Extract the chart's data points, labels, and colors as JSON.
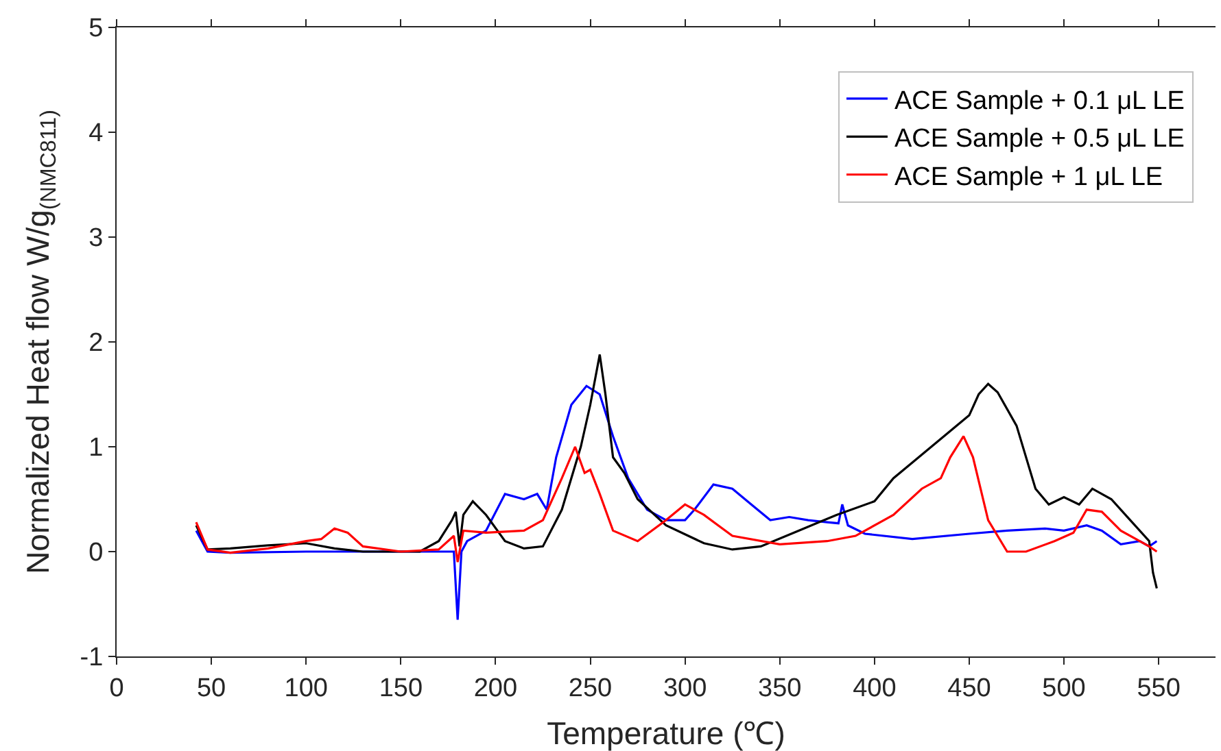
{
  "chart_data": {
    "type": "line",
    "xlabel": "Temperature (℃)",
    "ylabel": "Normalized Heat flow W/g$_{(NMC811)}$",
    "xlim": [
      0,
      580
    ],
    "xticks": [
      0,
      50,
      100,
      150,
      200,
      250,
      300,
      350,
      400,
      450,
      500,
      550
    ],
    "ylim": [
      -1,
      5
    ],
    "yticks": [
      -1,
      0,
      1,
      2,
      3,
      4,
      5
    ],
    "legend": "top right",
    "marker": "none",
    "line_style": "solid",
    "series": [
      {
        "name": "ACE Sample + 0.1 μL LE",
        "color": "#0000ff",
        "x": [
          42,
          48,
          60,
          100,
          150,
          178,
          180,
          182,
          185,
          195,
          205,
          215,
          222,
          227,
          232,
          240,
          248,
          255,
          262,
          270,
          280,
          290,
          300,
          305,
          315,
          325,
          335,
          345,
          355,
          365,
          375,
          381,
          383,
          386,
          395,
          420,
          450,
          470,
          490,
          500,
          512,
          520,
          530,
          540,
          545,
          549
        ],
        "values": [
          0.2,
          0.0,
          -0.01,
          0.0,
          0.0,
          0.0,
          -0.65,
          0.0,
          0.1,
          0.2,
          0.55,
          0.5,
          0.55,
          0.4,
          0.9,
          1.4,
          1.58,
          1.5,
          1.1,
          0.7,
          0.4,
          0.3,
          0.3,
          0.4,
          0.64,
          0.6,
          0.45,
          0.3,
          0.33,
          0.3,
          0.28,
          0.27,
          0.45,
          0.25,
          0.17,
          0.12,
          0.17,
          0.2,
          0.22,
          0.2,
          0.25,
          0.2,
          0.07,
          0.1,
          0.05,
          0.1
        ]
      },
      {
        "name": "ACE Sample + 0.5 μL LE",
        "color": "#000000",
        "x": [
          42,
          48,
          60,
          80,
          100,
          115,
          130,
          160,
          170,
          177,
          179,
          181,
          183,
          188,
          195,
          205,
          215,
          225,
          235,
          245,
          250,
          255,
          258,
          262,
          268,
          275,
          290,
          310,
          325,
          340,
          360,
          380,
          400,
          410,
          420,
          430,
          440,
          450,
          455,
          460,
          465,
          475,
          485,
          492,
          500,
          508,
          515,
          525,
          535,
          545,
          547,
          549
        ],
        "values": [
          0.25,
          0.02,
          0.03,
          0.06,
          0.08,
          0.03,
          0.0,
          0.0,
          0.1,
          0.3,
          0.38,
          0.05,
          0.35,
          0.48,
          0.35,
          0.1,
          0.03,
          0.05,
          0.4,
          1.0,
          1.4,
          1.88,
          1.5,
          0.9,
          0.75,
          0.5,
          0.25,
          0.08,
          0.02,
          0.05,
          0.2,
          0.35,
          0.48,
          0.7,
          0.85,
          1.0,
          1.15,
          1.3,
          1.5,
          1.6,
          1.52,
          1.2,
          0.6,
          0.45,
          0.52,
          0.45,
          0.6,
          0.5,
          0.3,
          0.1,
          -0.2,
          -0.35
        ]
      },
      {
        "name": "ACE Sample + 1 μL LE",
        "color": "#ff0000",
        "x": [
          42,
          48,
          60,
          80,
          100,
          108,
          115,
          122,
          130,
          150,
          170,
          178,
          180,
          183,
          195,
          215,
          225,
          235,
          242,
          247,
          250,
          255,
          262,
          275,
          290,
          300,
          310,
          325,
          350,
          375,
          390,
          410,
          425,
          435,
          440,
          447,
          452,
          460,
          470,
          480,
          495,
          505,
          512,
          520,
          530,
          545,
          549
        ],
        "values": [
          0.28,
          0.02,
          -0.01,
          0.03,
          0.1,
          0.12,
          0.22,
          0.18,
          0.05,
          0.0,
          0.02,
          0.15,
          -0.1,
          0.2,
          0.18,
          0.2,
          0.3,
          0.7,
          1.0,
          0.75,
          0.78,
          0.55,
          0.2,
          0.1,
          0.3,
          0.45,
          0.35,
          0.15,
          0.07,
          0.1,
          0.15,
          0.35,
          0.6,
          0.7,
          0.9,
          1.1,
          0.9,
          0.3,
          0.0,
          0.0,
          0.1,
          0.18,
          0.4,
          0.38,
          0.2,
          0.05,
          0.0
        ]
      }
    ]
  }
}
